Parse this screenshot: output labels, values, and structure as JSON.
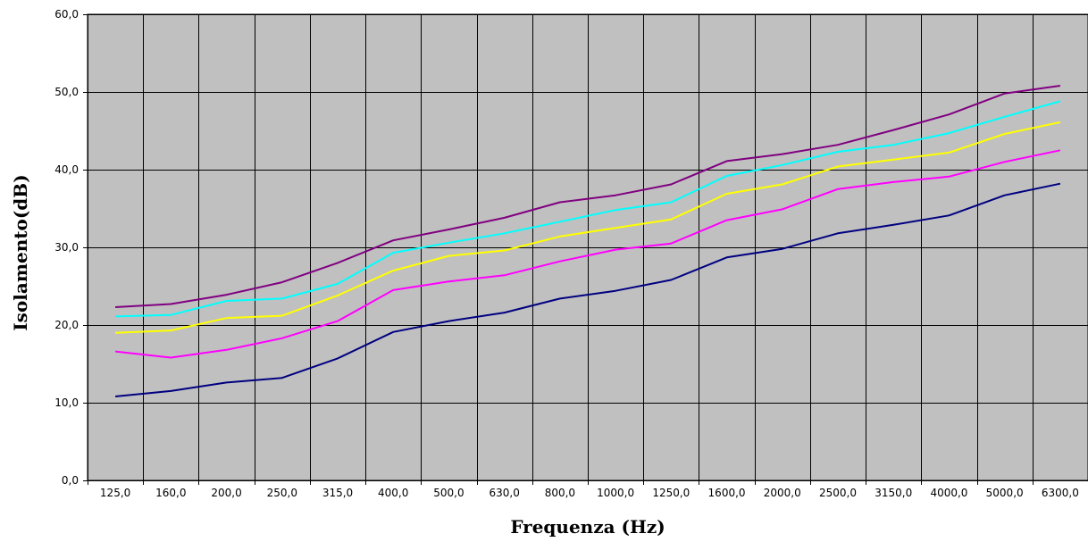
{
  "chart_data": {
    "type": "line",
    "title": "",
    "xlabel": "Frequenza (Hz)",
    "ylabel": "Isolamento(dB)",
    "ylim": [
      0,
      60
    ],
    "y_ticks": [
      "0,0",
      "10,0",
      "20,0",
      "30,0",
      "40,0",
      "50,0",
      "60,0"
    ],
    "categories": [
      "125,0",
      "160,0",
      "200,0",
      "250,0",
      "315,0",
      "400,0",
      "500,0",
      "630,0",
      "800,0",
      "1000,0",
      "1250,0",
      "1600,0",
      "2000,0",
      "2500,0",
      "3150,0",
      "4000,0",
      "5000,0",
      "6300,0"
    ],
    "grid": true,
    "legend": "none",
    "plot_background": "#c0c0c0",
    "series": [
      {
        "color": "#800080",
        "values": [
          22.3,
          22.7,
          23.9,
          25.5,
          28.0,
          30.9,
          32.3,
          33.8,
          35.8,
          36.7,
          38.1,
          41.1,
          42.0,
          43.2,
          45.1,
          47.1,
          49.8,
          50.8
        ]
      },
      {
        "color": "#00ffff",
        "values": [
          21.1,
          21.3,
          23.1,
          23.4,
          25.3,
          29.3,
          30.6,
          31.8,
          33.3,
          34.8,
          35.8,
          39.2,
          40.6,
          42.3,
          43.2,
          44.7,
          46.8,
          48.8
        ]
      },
      {
        "color": "#ffff00",
        "values": [
          19.0,
          19.3,
          20.9,
          21.2,
          23.8,
          27.0,
          28.9,
          29.6,
          31.4,
          32.5,
          33.6,
          36.9,
          38.1,
          40.4,
          41.3,
          42.2,
          44.6,
          46.1
        ]
      },
      {
        "color": "#ff00ff",
        "values": [
          16.6,
          15.8,
          16.8,
          18.3,
          20.5,
          24.5,
          25.6,
          26.4,
          28.2,
          29.7,
          30.5,
          33.5,
          34.9,
          37.5,
          38.4,
          39.1,
          41.0,
          42.5
        ]
      },
      {
        "color": "#000080",
        "values": [
          10.8,
          11.5,
          12.6,
          13.2,
          15.7,
          19.1,
          20.5,
          21.6,
          23.4,
          24.4,
          25.8,
          28.7,
          29.8,
          31.8,
          32.9,
          34.1,
          36.7,
          38.2
        ]
      }
    ]
  }
}
